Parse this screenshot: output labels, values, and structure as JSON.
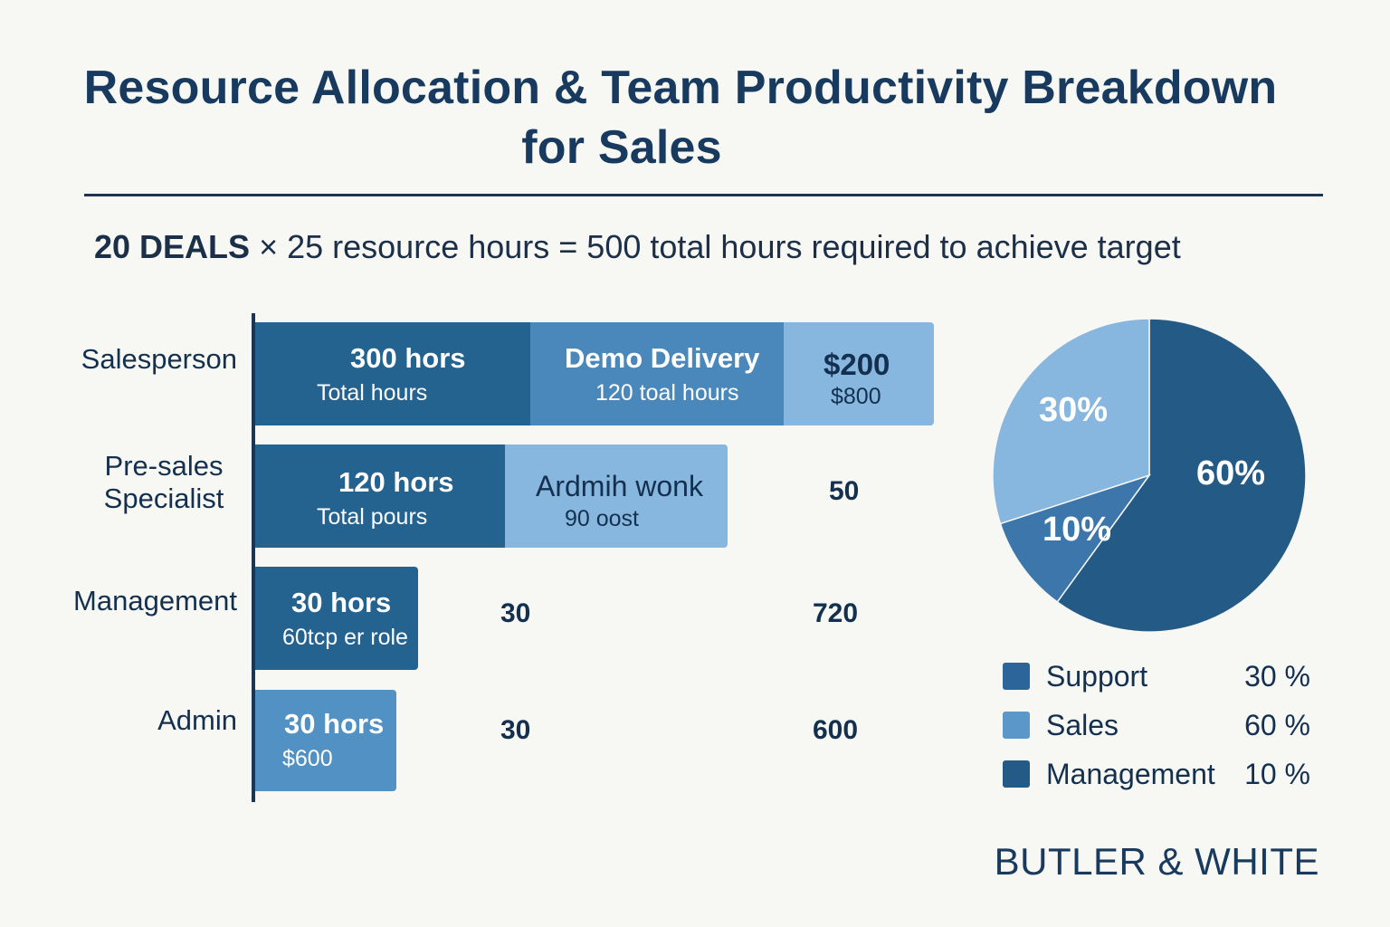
{
  "title_line1": "Resource Allocation & Team Productivity Breakdown",
  "title_line2": "for Sales",
  "equation": {
    "deals": "20 DEALS",
    "rest": "× 25 resource hours = 500 total hours required to achieve target"
  },
  "colors": {
    "dark": "#24628f",
    "mid": "#4a88bb",
    "light": "#87b6df",
    "pie_dark": "#245a86",
    "pie_mid": "#3c76aa",
    "pie_light": "#87b6df"
  },
  "chart_data": [
    {
      "type": "bar",
      "orientation": "horizontal",
      "categories": [
        "Salesperson",
        "Pre-sales Specialist",
        "Management",
        "Admin"
      ],
      "rows": [
        {
          "category": "Salesperson",
          "segments": [
            {
              "main": "300 hors",
              "sub": "Total hours",
              "value": 300
            },
            {
              "main": "Demo Delivery",
              "sub": "120 toal hours",
              "value": 120
            },
            {
              "main": "$200",
              "sub": "$800"
            }
          ]
        },
        {
          "category": "Pre-sales Specialist",
          "segments": [
            {
              "main": "120 hors",
              "sub": "Total pours",
              "value": 120
            },
            {
              "main": "Ardmih wonk",
              "sub": "90 oost",
              "value": 90
            }
          ],
          "outside": [
            "50"
          ]
        },
        {
          "category": "Management",
          "segments": [
            {
              "main": "30 hors",
              "sub": "60tcp er role",
              "value": 30
            }
          ],
          "outside": [
            "30",
            "720"
          ]
        },
        {
          "category": "Admin",
          "segments": [
            {
              "main": "30 hors",
              "sub": "$600",
              "value": 30
            }
          ],
          "outside": [
            "30",
            "600"
          ]
        }
      ]
    },
    {
      "type": "pie",
      "slices": [
        {
          "label": "60%",
          "value": 60
        },
        {
          "label": "10%",
          "value": 10
        },
        {
          "label": "30%",
          "value": 30
        }
      ],
      "legend": [
        {
          "label": "Support",
          "value": "30 %"
        },
        {
          "label": "Sales",
          "value": "60 %"
        },
        {
          "label": "Management",
          "value": "10 %"
        }
      ],
      "legend_position": "bottom"
    }
  ],
  "brand": "BUTLER & WHITE"
}
